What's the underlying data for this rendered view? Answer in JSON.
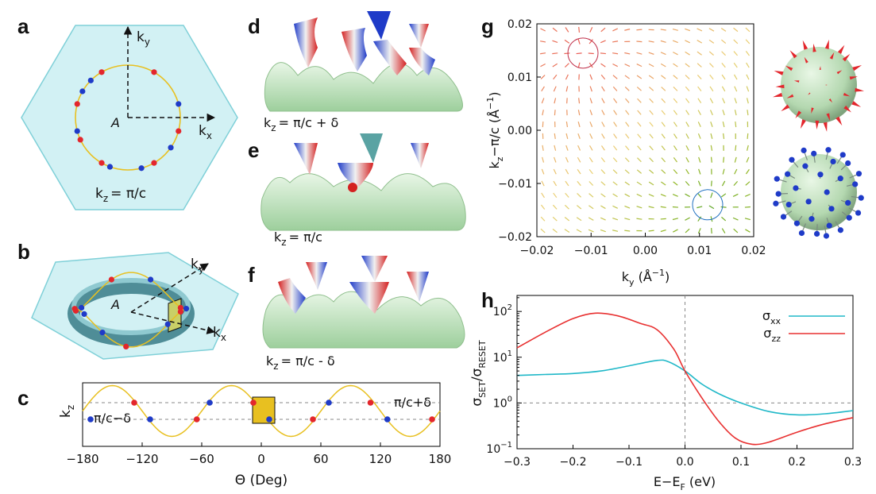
{
  "panels": {
    "a": {
      "label": "a",
      "kx": "k",
      "kx_sub": "x",
      "ky": "k",
      "ky_sub": "y",
      "origin": "A",
      "kz_text": "k",
      "kz_sub": "z",
      "kz_eq": "= π/c"
    },
    "b": {
      "label": "b",
      "kx": "k",
      "kx_sub": "x",
      "ky": "k",
      "ky_sub": "y",
      "origin": "A"
    },
    "c": {
      "label": "c",
      "ylabel": "k",
      "ylabel_sub": "z",
      "xlabel": "Θ (Deg)",
      "upper": "π/c+δ",
      "lower": "π/c−δ"
    },
    "d": {
      "label": "d",
      "caption": "k",
      "sub": "z",
      "eq": "= π/c + δ"
    },
    "e": {
      "label": "e",
      "caption": "k",
      "sub": "z",
      "eq": "= π/c"
    },
    "f": {
      "label": "f",
      "caption": "k",
      "sub": "z",
      "eq": "= π/c - δ"
    },
    "g": {
      "label": "g",
      "xlabel": "k",
      "xlabel_sub": "y",
      "xlabel_rest": " (Å",
      "xlabel_sup": "−1",
      "xlabel_end": ")",
      "ylabel": "k",
      "ylabel_sub": "z",
      "ylabel_rest": "−π/c (Å",
      "ylabel_sup": "−1",
      "ylabel_end": ")"
    },
    "h": {
      "label": "h",
      "xlabel": "E−E",
      "xlabel_sub": "F",
      "xlabel_rest": " (eV)",
      "ylabel": "σ",
      "ylabel_sub1": "SET",
      "ylabel_mid": "/σ",
      "ylabel_sub2": "RESET"
    }
  },
  "chart_data": [
    {
      "type": "line",
      "panel": "c",
      "xlabel": "Θ (Deg)",
      "ylabel": "kz",
      "xlim": [
        -180,
        180
      ],
      "xticks": [
        -180,
        -120,
        -60,
        0,
        60,
        120,
        180
      ],
      "reference_levels": [
        "π/c+δ",
        "π/c−δ"
      ],
      "series": [
        {
          "values_desc": "sinusoid",
          "period_deg": 120
        }
      ],
      "points_red": [
        -172,
        -128,
        -65,
        -8,
        52,
        110,
        172
      ],
      "points_blue": [
        -170,
        -112,
        -52,
        8,
        68,
        127,
        -172
      ],
      "colors": {
        "curve": "#e8c020",
        "red": "#e8202a",
        "blue": "#1e32c8"
      }
    },
    {
      "type": "scatter",
      "panel": "g",
      "xlim": [
        -0.02,
        0.02
      ],
      "ylim": [
        -0.02,
        0.02
      ],
      "xticks": [
        "−0.02",
        "−0.01",
        "0.00",
        "0.01",
        "0.02"
      ],
      "yticks": [
        "0.02",
        "0.01",
        "0.00",
        "−0.01",
        "−0.02"
      ],
      "source_point": [
        -0.0115,
        0.0145
      ],
      "sink_point": [
        0.0115,
        -0.014
      ]
    },
    {
      "type": "line",
      "panel": "h",
      "xlabel": "E−EF (eV)",
      "ylabel": "σSET/σRESET",
      "xlim": [
        -0.3,
        0.3
      ],
      "ylim_log10": [
        -1,
        2.35
      ],
      "xticks": [
        "−0.3",
        "−0.2",
        "−0.1",
        "0.0",
        "0.1",
        "0.2",
        "0.3"
      ],
      "yticks": [
        "10−1",
        "100",
        "101",
        "102"
      ],
      "legend_position": "top-right",
      "series": [
        {
          "name": "σxx",
          "color": "#20b8c8",
          "x": [
            -0.3,
            -0.25,
            -0.2,
            -0.15,
            -0.1,
            -0.05,
            -0.03,
            0.0,
            0.03,
            0.06,
            0.1,
            0.15,
            0.2,
            0.25,
            0.3
          ],
          "y": [
            4.0,
            4.2,
            4.4,
            5.0,
            6.5,
            8.5,
            8.0,
            5.0,
            2.6,
            1.6,
            1.0,
            0.65,
            0.55,
            0.58,
            0.68
          ]
        },
        {
          "name": "σzz",
          "color": "#e83030",
          "x": [
            -0.3,
            -0.25,
            -0.2,
            -0.16,
            -0.12,
            -0.08,
            -0.05,
            -0.02,
            0.0,
            0.03,
            0.06,
            0.09,
            0.12,
            0.15,
            0.2,
            0.25,
            0.3
          ],
          "y": [
            16,
            35,
            70,
            92,
            80,
            55,
            40,
            15,
            5.0,
            1.3,
            0.4,
            0.17,
            0.125,
            0.14,
            0.23,
            0.35,
            0.48
          ]
        }
      ]
    }
  ],
  "colors": {
    "bz_fill": "#d2f1f4",
    "bz_edge": "#7fd0d8",
    "ring": "#2e7580",
    "surface": "#bfe6c0",
    "red": "#e3262c",
    "blue": "#1f3bc8",
    "yellow": "#e8c020"
  }
}
